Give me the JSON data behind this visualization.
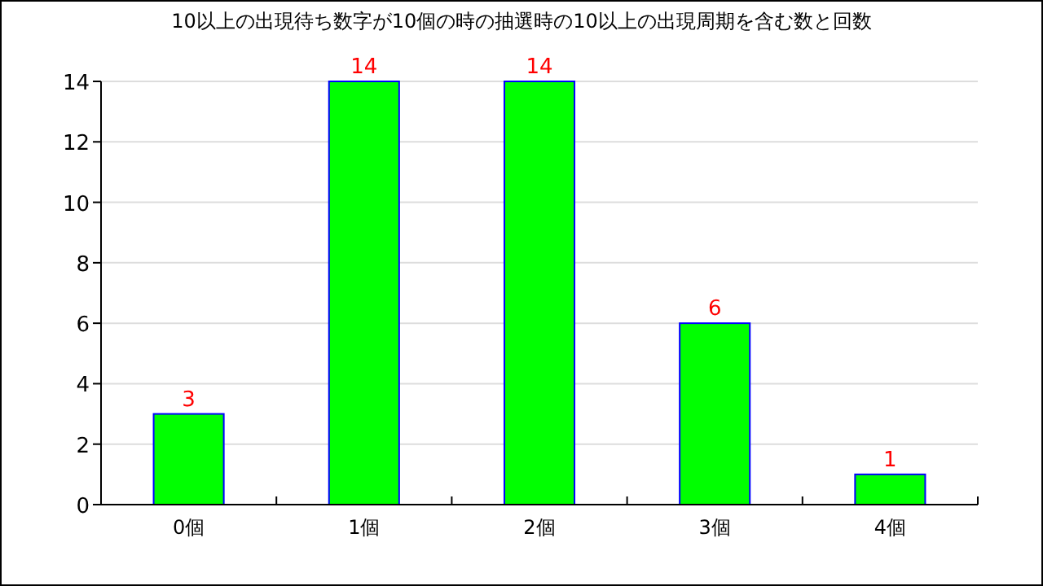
{
  "chart_data": {
    "type": "bar",
    "title": "10以上の出現待ち数字が10個の時の抽選時の10以上の出現周期を含む数と回数",
    "categories": [
      "0個",
      "1個",
      "2個",
      "3個",
      "4個"
    ],
    "values": [
      3,
      14,
      14,
      6,
      1
    ],
    "color": "#00ff00",
    "ylim": [
      0,
      14
    ],
    "yticks": [
      0,
      2,
      4,
      6,
      8,
      10,
      12,
      14
    ],
    "grid": "y",
    "data_labels": true
  }
}
